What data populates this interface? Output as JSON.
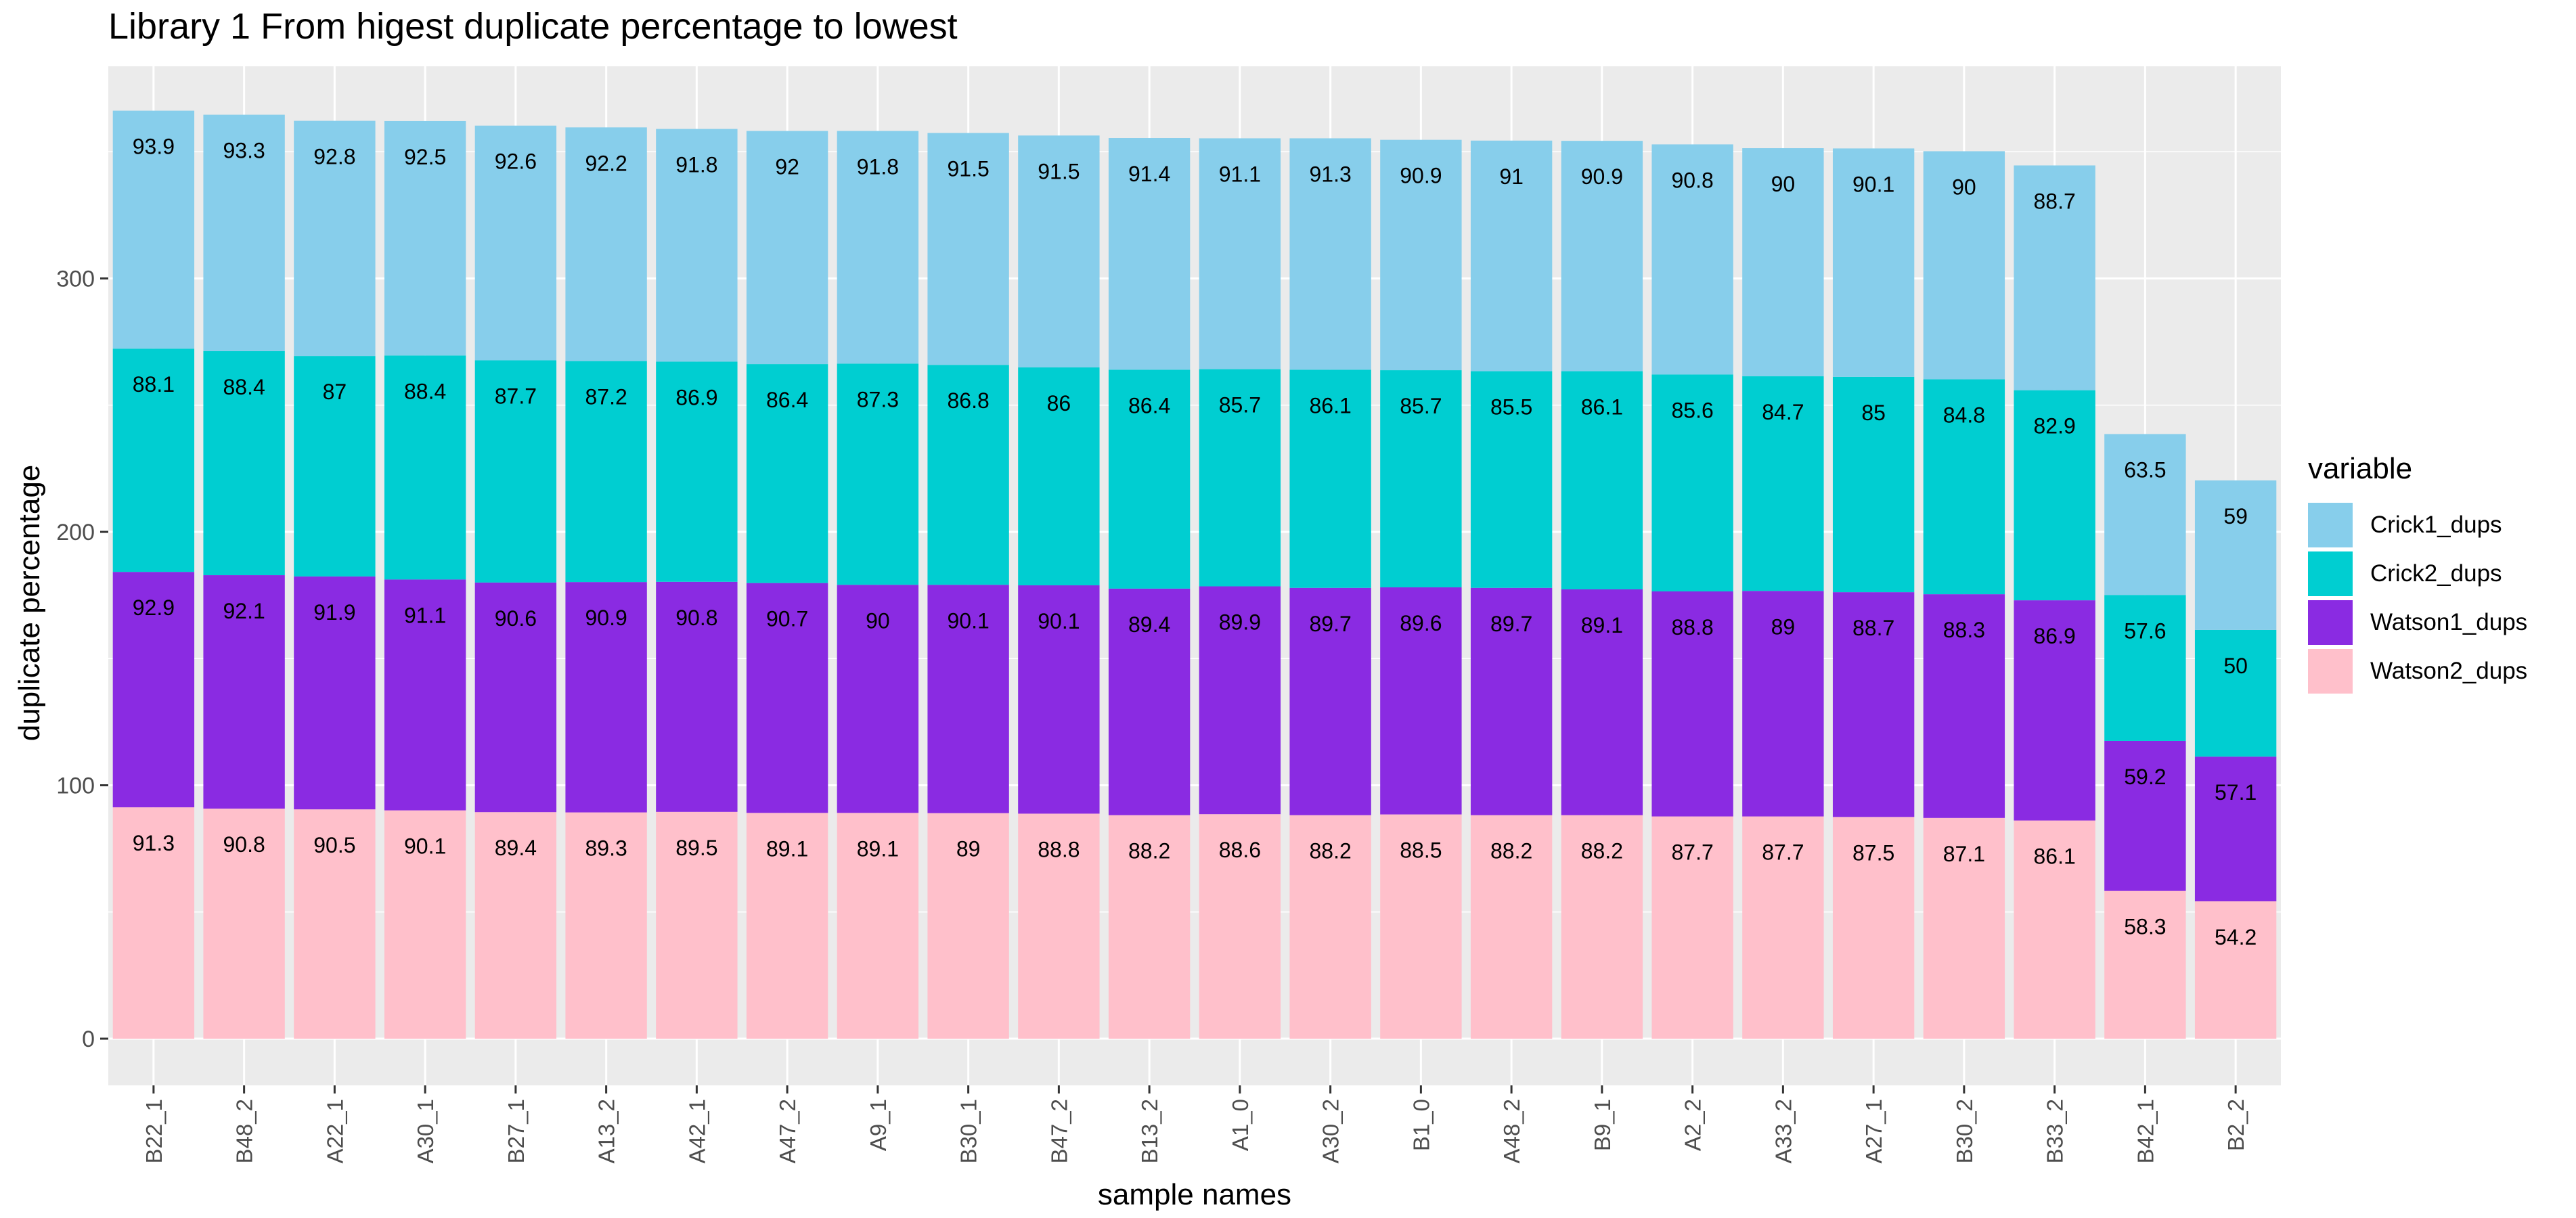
{
  "chart_data": {
    "type": "bar",
    "stacked": true,
    "title": "Library 1 From higest duplicate percentage to lowest",
    "xlabel": "sample names",
    "ylabel": "duplicate percentage",
    "ylim": [
      0,
      375
    ],
    "yticks": [
      0,
      100,
      200,
      300
    ],
    "grid": true,
    "legend": {
      "title": "variable",
      "position": "right"
    },
    "categories": [
      "B22_1",
      "B48_2",
      "A22_1",
      "A30_1",
      "B27_1",
      "A13_2",
      "A42_1",
      "A47_2",
      "A9_1",
      "B30_1",
      "B47_2",
      "B13_2",
      "A1_0",
      "A30_2",
      "B1_0",
      "A48_2",
      "B9_1",
      "A2_2",
      "A33_2",
      "A27_1",
      "B30_2",
      "B33_2",
      "B42_1",
      "B2_2"
    ],
    "series": [
      {
        "name": "Watson2_dups",
        "color": "#FFC0CB",
        "values": [
          91.3,
          90.8,
          90.5,
          90.1,
          89.4,
          89.3,
          89.5,
          89.1,
          89.1,
          89,
          88.8,
          88.2,
          88.6,
          88.2,
          88.5,
          88.2,
          88.2,
          87.7,
          87.7,
          87.5,
          87.1,
          86.1,
          58.3,
          54.2
        ]
      },
      {
        "name": "Watson1_dups",
        "color": "#8A2BE2",
        "values": [
          92.9,
          92.1,
          91.9,
          91.1,
          90.6,
          90.9,
          90.8,
          90.7,
          90,
          90.1,
          90.1,
          89.4,
          89.9,
          89.7,
          89.6,
          89.7,
          89.1,
          88.8,
          89,
          88.7,
          88.3,
          86.9,
          59.2,
          57.1
        ]
      },
      {
        "name": "Crick2_dups",
        "color": "#00CED1",
        "values": [
          88.1,
          88.4,
          87,
          88.4,
          87.7,
          87.2,
          86.9,
          86.4,
          87.3,
          86.8,
          86,
          86.4,
          85.7,
          86.1,
          85.7,
          85.5,
          86.1,
          85.6,
          84.7,
          85,
          84.8,
          82.9,
          57.6,
          50
        ]
      },
      {
        "name": "Crick1_dups",
        "color": "#87CEEB",
        "values": [
          93.9,
          93.3,
          92.8,
          92.5,
          92.6,
          92.2,
          91.8,
          92,
          91.8,
          91.5,
          91.5,
          91.4,
          91.1,
          91.3,
          90.9,
          91,
          90.9,
          90.8,
          90,
          90.1,
          90,
          88.7,
          63.5,
          59
        ]
      }
    ],
    "legend_order": [
      "Crick1_dups",
      "Crick2_dups",
      "Watson1_dups",
      "Watson2_dups"
    ],
    "panel_background": "#EBEBEB",
    "grid_color": "#FFFFFF"
  }
}
